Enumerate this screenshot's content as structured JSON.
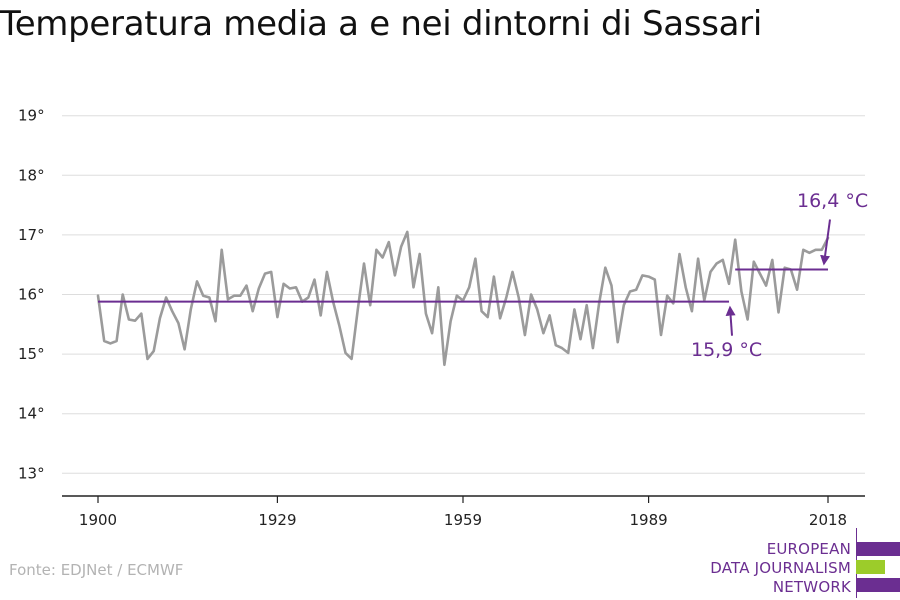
{
  "title": "Temperatura media a e nei dintorni di Sassari",
  "source": "Fonte: EDJNet / ECMWF",
  "logo": {
    "lines": [
      "EUROPEAN",
      "DATA JOURNALISM",
      "NETWORK"
    ],
    "colors": {
      "purple": "#6b2e91",
      "green": "#9ccc2a"
    }
  },
  "colors": {
    "line": "#9b9b9b",
    "avg": "#6b2e91",
    "grid": "#dddddd",
    "axis": "#222222"
  },
  "chart_data": {
    "type": "line",
    "title": "Temperatura media a e nei dintorni di Sassari",
    "xlabel": "",
    "ylabel": "",
    "xlim": [
      1900,
      2018
    ],
    "ylim": [
      12.7,
      19.3
    ],
    "x_ticks": [
      1900,
      1929,
      1959,
      1989,
      2018
    ],
    "y_ticks": [
      13,
      14,
      15,
      16,
      17,
      18,
      19
    ],
    "y_tick_labels": [
      "13°",
      "14°",
      "15°",
      "16°",
      "17°",
      "18°",
      "19°"
    ],
    "grid": true,
    "series": [
      {
        "x": [
          1900,
          1901,
          1902,
          1903,
          1904,
          1905,
          1906,
          1907,
          1908,
          1909,
          1910,
          1911,
          1912,
          1913,
          1914,
          1915,
          1916,
          1917,
          1918,
          1919,
          1920,
          1921,
          1922,
          1923,
          1924,
          1925,
          1926,
          1927,
          1928,
          1929,
          1930,
          1931,
          1932,
          1933,
          1934,
          1935,
          1936,
          1937,
          1938,
          1939,
          1940,
          1941,
          1942,
          1943,
          1944,
          1945,
          1946,
          1947,
          1948,
          1949,
          1950,
          1951,
          1952,
          1953,
          1954,
          1955,
          1956,
          1957,
          1958,
          1959,
          1960,
          1961,
          1962,
          1963,
          1964,
          1965,
          1966,
          1967,
          1968,
          1969,
          1970,
          1971,
          1972,
          1973,
          1974,
          1975,
          1976,
          1977,
          1978,
          1979,
          1980,
          1981,
          1982,
          1983,
          1984,
          1985,
          1986,
          1987,
          1988,
          1989,
          1990,
          1991,
          1992,
          1993,
          1994,
          1995,
          1996,
          1997,
          1998,
          1999,
          2000,
          2001,
          2002,
          2003,
          2004,
          2005,
          2006,
          2007,
          2008,
          2009,
          2010,
          2011,
          2012,
          2013,
          2014,
          2015,
          2016,
          2017,
          2018
        ],
        "values": [
          15.98,
          15.22,
          15.18,
          15.22,
          16.0,
          15.58,
          15.56,
          15.68,
          14.92,
          15.05,
          15.6,
          15.95,
          15.72,
          15.52,
          15.08,
          15.75,
          16.22,
          15.98,
          15.95,
          15.55,
          16.75,
          15.92,
          15.98,
          15.98,
          16.15,
          15.72,
          16.1,
          16.35,
          16.38,
          15.62,
          16.18,
          16.1,
          16.12,
          15.88,
          15.95,
          16.25,
          15.65,
          16.38,
          15.88,
          15.48,
          15.02,
          14.92,
          15.75,
          16.52,
          15.82,
          16.75,
          16.62,
          16.88,
          16.32,
          16.8,
          17.05,
          16.12,
          16.68,
          15.68,
          15.35,
          16.12,
          14.82,
          15.55,
          15.98,
          15.9,
          16.12,
          16.6,
          15.72,
          15.62,
          16.3,
          15.6,
          15.95,
          16.38,
          15.95,
          15.32,
          16.0,
          15.75,
          15.35,
          15.65,
          15.15,
          15.1,
          15.02,
          15.75,
          15.25,
          15.82,
          15.1,
          15.85,
          16.45,
          16.15,
          15.2,
          15.82,
          16.05,
          16.08,
          16.32,
          16.3,
          16.25,
          15.32,
          15.98,
          15.85,
          16.68,
          16.12,
          15.72,
          16.6,
          15.9,
          16.38,
          16.52,
          16.58,
          16.18,
          16.92,
          16.05,
          15.58,
          16.55,
          16.35,
          16.15,
          16.58,
          15.7,
          16.45,
          16.42,
          16.08,
          16.75,
          16.7,
          16.75,
          16.75,
          16.95
        ]
      }
    ],
    "averages": [
      {
        "from": 1900,
        "to": 2002,
        "value": 15.88,
        "label": "15,9 °C"
      },
      {
        "from": 2003,
        "to": 2018,
        "value": 16.42,
        "label": "16,4 °C"
      }
    ]
  }
}
